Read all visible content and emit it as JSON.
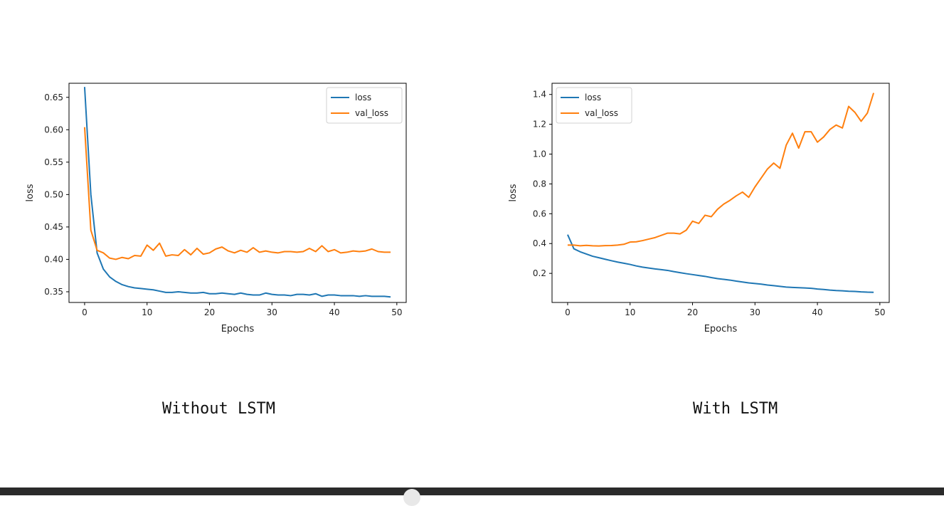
{
  "chart_data": [
    {
      "type": "line",
      "title": "",
      "xlabel": "Epochs",
      "ylabel": "loss",
      "xlim": [
        -2.5,
        51.5
      ],
      "ylim": [
        0.3335,
        0.6717
      ],
      "xticks": [
        0,
        10,
        20,
        30,
        40,
        50
      ],
      "yticks": [
        0.35,
        0.4,
        0.45,
        0.5,
        0.55,
        0.6,
        0.65
      ],
      "ytick_decimals": 2,
      "grid": false,
      "legend": "top-right",
      "series": [
        {
          "name": "loss",
          "color": "#1f77b4",
          "x": [
            0,
            1,
            2,
            3,
            4,
            5,
            6,
            7,
            8,
            9,
            10,
            11,
            12,
            13,
            14,
            15,
            16,
            17,
            18,
            19,
            20,
            21,
            22,
            23,
            24,
            25,
            26,
            27,
            28,
            29,
            30,
            31,
            32,
            33,
            34,
            35,
            36,
            37,
            38,
            39,
            40,
            41,
            42,
            43,
            44,
            45,
            46,
            47,
            48,
            49
          ],
          "values": [
            0.666,
            0.5,
            0.41,
            0.385,
            0.373,
            0.366,
            0.361,
            0.358,
            0.356,
            0.355,
            0.354,
            0.353,
            0.351,
            0.349,
            0.349,
            0.35,
            0.349,
            0.348,
            0.348,
            0.349,
            0.347,
            0.347,
            0.348,
            0.347,
            0.346,
            0.348,
            0.346,
            0.345,
            0.345,
            0.348,
            0.346,
            0.345,
            0.345,
            0.344,
            0.346,
            0.346,
            0.345,
            0.347,
            0.343,
            0.345,
            0.345,
            0.344,
            0.344,
            0.344,
            0.343,
            0.344,
            0.343,
            0.343,
            0.343,
            0.342
          ]
        },
        {
          "name": "val_loss",
          "color": "#ff7f0e",
          "x": [
            0,
            1,
            2,
            3,
            4,
            5,
            6,
            7,
            8,
            9,
            10,
            11,
            12,
            13,
            14,
            15,
            16,
            17,
            18,
            19,
            20,
            21,
            22,
            23,
            24,
            25,
            26,
            27,
            28,
            29,
            30,
            31,
            32,
            33,
            34,
            35,
            36,
            37,
            38,
            39,
            40,
            41,
            42,
            43,
            44,
            45,
            46,
            47,
            48,
            49
          ],
          "values": [
            0.604,
            0.445,
            0.414,
            0.41,
            0.402,
            0.4,
            0.403,
            0.401,
            0.406,
            0.405,
            0.422,
            0.414,
            0.425,
            0.405,
            0.407,
            0.406,
            0.415,
            0.407,
            0.417,
            0.408,
            0.41,
            0.416,
            0.419,
            0.413,
            0.41,
            0.414,
            0.411,
            0.418,
            0.411,
            0.413,
            0.411,
            0.41,
            0.412,
            0.412,
            0.411,
            0.412,
            0.417,
            0.412,
            0.421,
            0.412,
            0.415,
            0.41,
            0.411,
            0.413,
            0.412,
            0.413,
            0.416,
            0.412,
            0.411,
            0.411
          ]
        }
      ]
    },
    {
      "type": "line",
      "title": "",
      "xlabel": "Epochs",
      "ylabel": "loss",
      "xlim": [
        -2.5,
        51.5
      ],
      "ylim": [
        0.005,
        1.475
      ],
      "xticks": [
        0,
        10,
        20,
        30,
        40,
        50
      ],
      "yticks": [
        0.2,
        0.4,
        0.6,
        0.8,
        1.0,
        1.2,
        1.4
      ],
      "ytick_decimals": 1,
      "grid": false,
      "legend": "top-left",
      "series": [
        {
          "name": "loss",
          "color": "#1f77b4",
          "x": [
            0,
            1,
            2,
            3,
            4,
            5,
            6,
            7,
            8,
            9,
            10,
            11,
            12,
            13,
            14,
            15,
            16,
            17,
            18,
            19,
            20,
            21,
            22,
            23,
            24,
            25,
            26,
            27,
            28,
            29,
            30,
            31,
            32,
            33,
            34,
            35,
            36,
            37,
            38,
            39,
            40,
            41,
            42,
            43,
            44,
            45,
            46,
            47,
            48,
            49
          ],
          "values": [
            0.46,
            0.365,
            0.345,
            0.33,
            0.315,
            0.305,
            0.295,
            0.285,
            0.276,
            0.268,
            0.26,
            0.25,
            0.242,
            0.236,
            0.23,
            0.225,
            0.22,
            0.212,
            0.205,
            0.198,
            0.192,
            0.186,
            0.18,
            0.172,
            0.165,
            0.16,
            0.155,
            0.148,
            0.142,
            0.136,
            0.132,
            0.128,
            0.122,
            0.118,
            0.113,
            0.108,
            0.106,
            0.104,
            0.102,
            0.1,
            0.095,
            0.092,
            0.088,
            0.085,
            0.083,
            0.08,
            0.079,
            0.076,
            0.074,
            0.073
          ]
        },
        {
          "name": "val_loss",
          "color": "#ff7f0e",
          "x": [
            0,
            1,
            2,
            3,
            4,
            5,
            6,
            7,
            8,
            9,
            10,
            11,
            12,
            13,
            14,
            15,
            16,
            17,
            18,
            19,
            20,
            21,
            22,
            23,
            24,
            25,
            26,
            27,
            28,
            29,
            30,
            31,
            32,
            33,
            34,
            35,
            36,
            37,
            38,
            39,
            40,
            41,
            42,
            43,
            44,
            45,
            46,
            47,
            48,
            49
          ],
          "values": [
            0.39,
            0.39,
            0.385,
            0.388,
            0.385,
            0.384,
            0.386,
            0.387,
            0.39,
            0.395,
            0.41,
            0.412,
            0.42,
            0.43,
            0.44,
            0.455,
            0.47,
            0.47,
            0.465,
            0.49,
            0.55,
            0.535,
            0.59,
            0.58,
            0.63,
            0.665,
            0.69,
            0.72,
            0.745,
            0.71,
            0.78,
            0.84,
            0.9,
            0.94,
            0.905,
            1.06,
            1.14,
            1.04,
            1.15,
            1.15,
            1.08,
            1.115,
            1.165,
            1.195,
            1.175,
            1.32,
            1.28,
            1.22,
            1.275,
            1.41
          ]
        }
      ]
    }
  ],
  "captions": {
    "left": "Without LSTM",
    "right": "With LSTM"
  }
}
